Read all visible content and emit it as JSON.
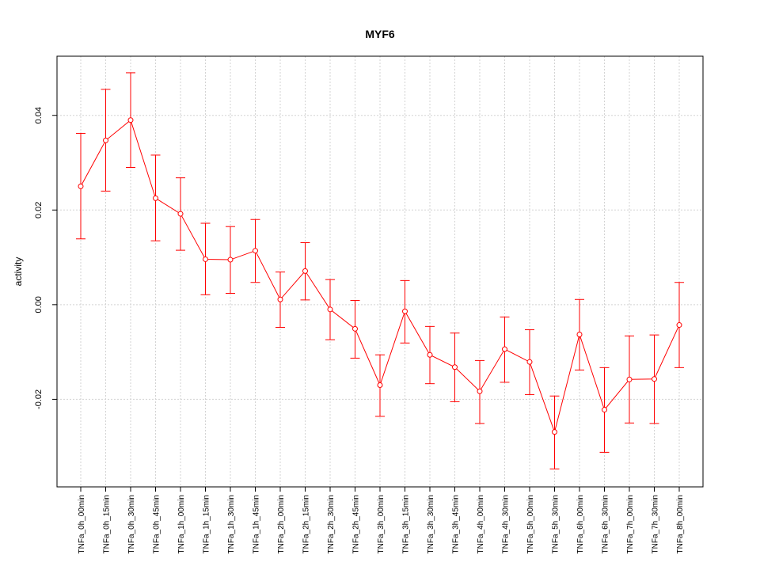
{
  "chart_data": {
    "type": "line",
    "title": "MYF6",
    "xlabel": "",
    "ylabel": "activity",
    "categories": [
      "TNFa_0h_00min",
      "TNFa_0h_15min",
      "TNFa_0h_30min",
      "TNFa_0h_45min",
      "TNFa_1h_00min",
      "TNFa_1h_15min",
      "TNFa_1h_30min",
      "TNFa_1h_45min",
      "TNFa_2h_00min",
      "TNFa_2h_15min",
      "TNFa_2h_30min",
      "TNFa_2h_45min",
      "TNFa_3h_00min",
      "TNFa_3h_15min",
      "TNFa_3h_30min",
      "TNFa_3h_45min",
      "TNFa_4h_00min",
      "TNFa_4h_30min",
      "TNFa_5h_00min",
      "TNFa_5h_30min",
      "TNFa_6h_00min",
      "TNFa_6h_30min",
      "TNFa_7h_00min",
      "TNFa_7h_30min",
      "TNFa_8h_00min"
    ],
    "series": [
      {
        "values": [
          0.025,
          0.0347,
          0.039,
          0.0225,
          0.0192,
          0.0096,
          0.0095,
          0.0114,
          0.0011,
          0.0071,
          -0.001,
          -0.0051,
          -0.017,
          -0.0014,
          -0.0106,
          -0.0132,
          -0.0183,
          -0.0094,
          -0.0121,
          -0.0269,
          -0.0063,
          -0.0222,
          -0.0158,
          -0.0157,
          -0.0043
        ],
        "lower": [
          0.0139,
          0.024,
          0.029,
          0.0135,
          0.0115,
          0.0021,
          0.0024,
          0.0047,
          -0.0048,
          0.001,
          -0.0074,
          -0.0113,
          -0.0236,
          -0.0081,
          -0.0167,
          -0.0205,
          -0.0251,
          -0.0164,
          -0.019,
          -0.0347,
          -0.0138,
          -0.0312,
          -0.025,
          -0.0251,
          -0.0133
        ],
        "upper": [
          0.0362,
          0.0455,
          0.049,
          0.0316,
          0.0268,
          0.0172,
          0.0165,
          0.018,
          0.0069,
          0.0131,
          0.0053,
          0.0009,
          -0.0106,
          0.0051,
          -0.0046,
          -0.006,
          -0.0118,
          -0.0026,
          -0.0053,
          -0.0193,
          0.0011,
          -0.0133,
          -0.0066,
          -0.0064,
          0.0047
        ]
      }
    ],
    "y_ticks": [
      -0.02,
      0.0,
      0.02,
      0.04
    ],
    "y_tick_labels": [
      "-0.02",
      "0.00",
      "0.02",
      "0.04"
    ],
    "ylim": [
      -0.0385,
      0.0525
    ],
    "grid": true,
    "colors": {
      "series": "#ff0000",
      "grid": "#d3d3d3",
      "axis": "#000000"
    }
  }
}
